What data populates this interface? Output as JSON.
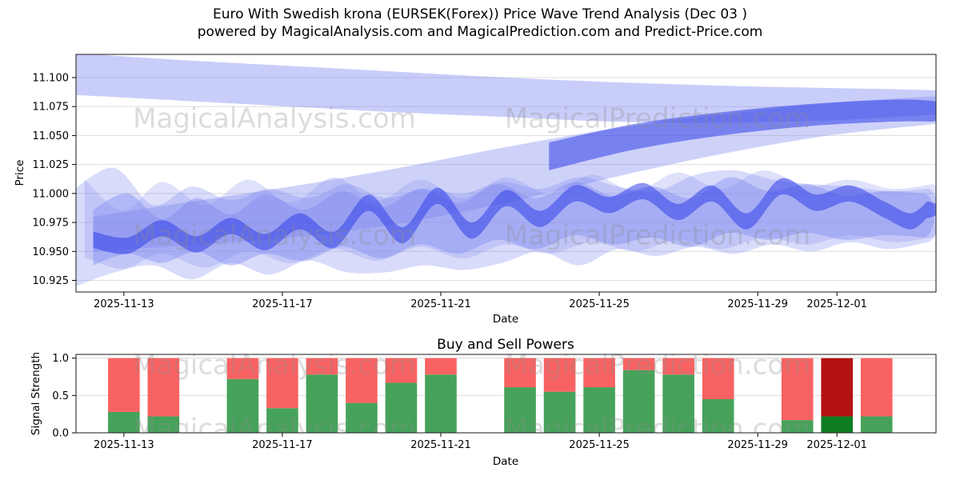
{
  "page": {
    "title_line1": "Euro With Swedish krona (EURSEK(Forex)) Price Wave Trend Analysis (Dec 03 )",
    "title_line2": "powered by MagicalAnalysis.com and MagicalPrediction.com and Predict-Price.com"
  },
  "watermark": {
    "left_text": "MagicalAnalysis.com",
    "right_text": "MagicalPrediction.com",
    "color": "#8c8c8c",
    "opacity": 0.3
  },
  "chart_data": [
    {
      "type": "area",
      "name": "price-wave-trend",
      "title": "",
      "xlabel": "Date",
      "ylabel": "Price",
      "ylim": [
        10.915,
        11.12
      ],
      "x_domain": [
        "2025-11-11T19:00:00Z",
        "2025-12-03T12:00:00Z"
      ],
      "grid": "horizontal",
      "y_ticks": [
        {
          "value": 11.1,
          "label": "11.100"
        },
        {
          "value": 11.075,
          "label": "11.075"
        },
        {
          "value": 11.05,
          "label": "11.050"
        },
        {
          "value": 11.025,
          "label": "11.025"
        },
        {
          "value": 11.0,
          "label": "11.000"
        },
        {
          "value": 10.975,
          "label": "10.975"
        },
        {
          "value": 10.95,
          "label": "10.950"
        },
        {
          "value": 10.925,
          "label": "10.925"
        }
      ],
      "x_ticks": [
        {
          "date": "2025-11-13",
          "label": "2025-11-13"
        },
        {
          "date": "2025-11-17",
          "label": "2025-11-17"
        },
        {
          "date": "2025-11-21",
          "label": "2025-11-21"
        },
        {
          "date": "2025-11-25",
          "label": "2025-11-25"
        },
        {
          "date": "2025-11-29",
          "label": "2025-11-29"
        },
        {
          "date": "2025-12-01",
          "label": "2025-12-01"
        }
      ],
      "bands": [
        {
          "name": "upper-cloud",
          "color": "#7e88f0",
          "opacity": 0.42,
          "round_end": false,
          "points": [
            [
              0.0,
              11.085,
              11.121
            ],
            [
              0.125,
              11.08,
              11.115
            ],
            [
              0.25,
              11.075,
              11.11
            ],
            [
              0.375,
              11.07,
              11.105
            ],
            [
              0.5,
              11.066,
              11.1
            ],
            [
              0.625,
              11.062,
              11.096
            ],
            [
              0.75,
              11.061,
              11.093
            ],
            [
              0.875,
              11.063,
              11.091
            ],
            [
              0.95,
              11.066,
              11.09
            ],
            [
              1.0,
              11.068,
              11.089
            ]
          ]
        },
        {
          "name": "rising-cloud",
          "color": "#7e88f0",
          "opacity": 0.38,
          "round_end": false,
          "points": [
            [
              0.02,
              10.95,
              10.98
            ],
            [
              0.125,
              10.955,
              10.992
            ],
            [
              0.25,
              10.962,
              11.006
            ],
            [
              0.375,
              10.974,
              11.022
            ],
            [
              0.5,
              10.992,
              11.04
            ],
            [
              0.625,
              11.014,
              11.056
            ],
            [
              0.75,
              11.034,
              11.068
            ],
            [
              0.875,
              11.05,
              11.078
            ],
            [
              1.0,
              11.06,
              11.084
            ]
          ]
        },
        {
          "name": "rising-core",
          "color": "#3240e8",
          "opacity": 0.55,
          "round_end": true,
          "points": [
            [
              0.55,
              11.02,
              11.044
            ],
            [
              0.65,
              11.038,
              11.06
            ],
            [
              0.75,
              11.05,
              11.07
            ],
            [
              0.85,
              11.058,
              11.077
            ],
            [
              0.95,
              11.062,
              11.081
            ],
            [
              0.995,
              11.062,
              11.08
            ]
          ]
        },
        {
          "name": "wave-wide",
          "color": "#7e88f0",
          "opacity": 0.3,
          "round_end": true,
          "points": [
            [
              0.0,
              10.92,
              11.005
            ],
            [
              0.045,
              10.932,
              11.022
            ],
            [
              0.09,
              10.938,
              10.99
            ],
            [
              0.135,
              10.926,
              11.006
            ],
            [
              0.18,
              10.94,
              10.994
            ],
            [
              0.225,
              10.93,
              11.004
            ],
            [
              0.27,
              10.942,
              10.996
            ],
            [
              0.315,
              10.932,
              11.008
            ],
            [
              0.36,
              10.932,
              10.996
            ],
            [
              0.405,
              10.938,
              11.004
            ],
            [
              0.45,
              10.934,
              11.0
            ],
            [
              0.495,
              10.94,
              11.01
            ],
            [
              0.54,
              10.95,
              11.004
            ],
            [
              0.585,
              10.938,
              11.014
            ],
            [
              0.63,
              10.952,
              11.006
            ],
            [
              0.675,
              10.946,
              11.002
            ],
            [
              0.72,
              10.954,
              11.016
            ],
            [
              0.765,
              10.948,
              11.02
            ],
            [
              0.81,
              10.956,
              11.012
            ],
            [
              0.855,
              10.95,
              11.008
            ],
            [
              0.9,
              10.958,
              11.006
            ],
            [
              0.945,
              10.952,
              11.002
            ],
            [
              0.99,
              10.958,
              11.004
            ]
          ]
        },
        {
          "name": "wave-soft",
          "color": "#7e88f0",
          "opacity": 0.25,
          "round_end": true,
          "points": [
            [
              0.01,
              10.945,
              11.012
            ],
            [
              0.055,
              10.935,
              10.985
            ],
            [
              0.1,
              10.948,
              11.01
            ],
            [
              0.15,
              10.936,
              10.99
            ],
            [
              0.2,
              10.95,
              11.012
            ],
            [
              0.25,
              10.94,
              10.992
            ],
            [
              0.3,
              10.952,
              11.014
            ],
            [
              0.35,
              10.942,
              10.994
            ],
            [
              0.4,
              10.954,
              11.012
            ],
            [
              0.45,
              10.944,
              10.996
            ],
            [
              0.5,
              10.956,
              11.014
            ],
            [
              0.55,
              10.948,
              11.0
            ],
            [
              0.6,
              10.958,
              11.016
            ],
            [
              0.65,
              10.95,
              11.002
            ],
            [
              0.7,
              10.96,
              11.018
            ],
            [
              0.75,
              10.952,
              11.004
            ],
            [
              0.8,
              10.962,
              11.02
            ],
            [
              0.85,
              10.956,
              11.006
            ],
            [
              0.9,
              10.964,
              11.012
            ],
            [
              0.95,
              10.958,
              11.004
            ],
            [
              0.995,
              10.962,
              11.008
            ]
          ]
        },
        {
          "name": "wave-mid",
          "color": "#7e88f0",
          "opacity": 0.4,
          "round_end": true,
          "points": [
            [
              0.02,
              10.938,
              10.986
            ],
            [
              0.06,
              10.948,
              11.0
            ],
            [
              0.1,
              10.94,
              10.978
            ],
            [
              0.14,
              10.95,
              10.996
            ],
            [
              0.18,
              10.938,
              10.982
            ],
            [
              0.22,
              10.948,
              10.999
            ],
            [
              0.265,
              10.942,
              10.986
            ],
            [
              0.31,
              10.954,
              11.002
            ],
            [
              0.355,
              10.944,
              10.988
            ],
            [
              0.4,
              10.956,
              11.004
            ],
            [
              0.445,
              10.948,
              10.992
            ],
            [
              0.49,
              10.96,
              11.008
            ],
            [
              0.535,
              10.952,
              10.996
            ],
            [
              0.58,
              10.964,
              11.01
            ],
            [
              0.625,
              10.956,
              10.998
            ],
            [
              0.67,
              10.962,
              11.006
            ],
            [
              0.715,
              10.954,
              10.996
            ],
            [
              0.76,
              10.966,
              11.014
            ],
            [
              0.805,
              10.96,
              11.002
            ],
            [
              0.85,
              10.966,
              11.008
            ],
            [
              0.895,
              10.96,
              10.998
            ],
            [
              0.94,
              10.964,
              11.002
            ],
            [
              0.985,
              10.962,
              11.0
            ]
          ]
        },
        {
          "name": "wave-core",
          "color": "#3240e8",
          "opacity": 0.55,
          "round_end": true,
          "half_width": 0.007,
          "center_points": [
            [
              0.02,
              10.96
            ],
            [
              0.06,
              10.955
            ],
            [
              0.1,
              10.97
            ],
            [
              0.14,
              10.956
            ],
            [
              0.18,
              10.972
            ],
            [
              0.22,
              10.958
            ],
            [
              0.26,
              10.976
            ],
            [
              0.3,
              10.96
            ],
            [
              0.34,
              10.992
            ],
            [
              0.38,
              10.964
            ],
            [
              0.42,
              10.998
            ],
            [
              0.46,
              10.968
            ],
            [
              0.5,
              10.996
            ],
            [
              0.54,
              10.978
            ],
            [
              0.58,
              11.0
            ],
            [
              0.62,
              10.99
            ],
            [
              0.66,
              11.002
            ],
            [
              0.7,
              10.984
            ],
            [
              0.74,
              11.0
            ],
            [
              0.78,
              10.976
            ],
            [
              0.82,
              11.006
            ],
            [
              0.86,
              10.992
            ],
            [
              0.9,
              11.0
            ],
            [
              0.94,
              10.986
            ],
            [
              0.97,
              10.976
            ],
            [
              0.99,
              10.986
            ]
          ]
        }
      ]
    },
    {
      "type": "bar",
      "name": "buy-sell-powers",
      "title": "Buy and Sell Powers",
      "xlabel": "Date",
      "ylabel": "Signal Strength",
      "ylim": [
        0,
        1.05
      ],
      "x_domain": [
        "2025-11-11T19:00:00Z",
        "2025-12-03T12:00:00Z"
      ],
      "grid": "horizontal",
      "bar_width_days": 0.8,
      "y_ticks": [
        {
          "value": 1.0,
          "label": "1.0"
        },
        {
          "value": 0.5,
          "label": "0.5"
        },
        {
          "value": 0.0,
          "label": "0.0"
        }
      ],
      "x_ticks": [
        {
          "date": "2025-11-13",
          "label": "2025-11-13"
        },
        {
          "date": "2025-11-17",
          "label": "2025-11-17"
        },
        {
          "date": "2025-11-21",
          "label": "2025-11-21"
        },
        {
          "date": "2025-11-25",
          "label": "2025-11-25"
        },
        {
          "date": "2025-11-29",
          "label": "2025-11-29"
        },
        {
          "date": "2025-12-01",
          "label": "2025-12-01"
        }
      ],
      "categories": [
        "2025-11-13",
        "2025-11-14",
        "2025-11-16",
        "2025-11-17",
        "2025-11-18",
        "2025-11-19",
        "2025-11-20",
        "2025-11-21",
        "2025-11-23",
        "2025-11-24",
        "2025-11-25",
        "2025-11-26",
        "2025-11-27",
        "2025-11-28",
        "2025-11-30",
        "2025-12-01",
        "2025-12-02"
      ],
      "series": [
        {
          "name": "Buy",
          "color": "#46a25a",
          "values": [
            0.28,
            0.22,
            0.72,
            0.33,
            0.78,
            0.4,
            0.67,
            0.78,
            0.61,
            0.55,
            0.61,
            0.84,
            0.78,
            0.45,
            0.17,
            0.22,
            0.22
          ]
        },
        {
          "name": "Sell",
          "color": "#f96262",
          "values": [
            0.72,
            0.78,
            0.28,
            0.67,
            0.22,
            0.6,
            0.33,
            0.22,
            0.39,
            0.45,
            0.39,
            0.16,
            0.22,
            0.55,
            0.83,
            0.78,
            0.78
          ]
        }
      ],
      "highlight": {
        "category": "2025-12-01",
        "buy_color": "#0e7d24",
        "sell_color": "#b31212"
      }
    }
  ]
}
